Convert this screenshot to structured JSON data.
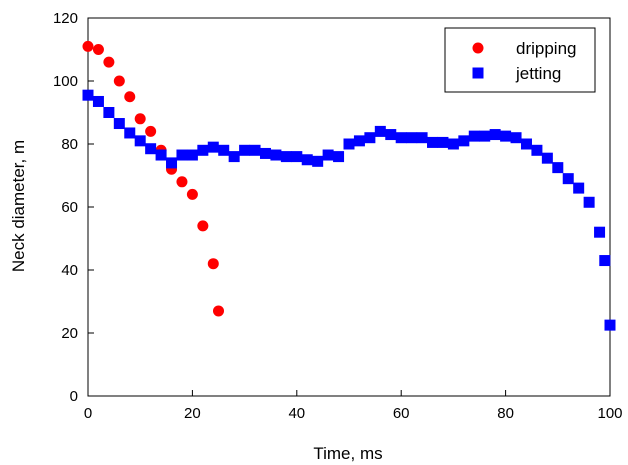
{
  "chart_data": {
    "type": "scatter",
    "title": "",
    "xlabel": "Time, ms",
    "ylabel": "Neck diameter,    m",
    "xlim": [
      0,
      100
    ],
    "ylim": [
      0,
      120
    ],
    "xticks": [
      0,
      20,
      40,
      60,
      80,
      100
    ],
    "yticks": [
      0,
      20,
      40,
      60,
      80,
      100,
      120
    ],
    "grid": false,
    "legend_position": "top-right",
    "series": [
      {
        "name": "dripping",
        "marker": "circle",
        "color": "#ff0000",
        "x": [
          0,
          2,
          4,
          6,
          8,
          10,
          12,
          14,
          16,
          18,
          20,
          22,
          24,
          25
        ],
        "y": [
          111,
          110,
          106,
          100,
          95,
          88,
          84,
          78,
          72,
          68,
          64,
          54,
          42,
          27
        ]
      },
      {
        "name": "jetting",
        "marker": "square",
        "color": "#0000ff",
        "x": [
          0,
          2,
          4,
          6,
          8,
          10,
          12,
          14,
          16,
          18,
          20,
          22,
          24,
          26,
          28,
          30,
          32,
          34,
          36,
          38,
          40,
          42,
          44,
          46,
          48,
          50,
          52,
          54,
          56,
          58,
          60,
          62,
          64,
          66,
          68,
          70,
          72,
          74,
          76,
          78,
          80,
          82,
          84,
          86,
          88,
          90,
          92,
          94,
          96,
          98,
          99,
          100
        ],
        "y": [
          95.5,
          93.5,
          90,
          86.5,
          83.5,
          81,
          78.5,
          76.5,
          74,
          76.5,
          76.5,
          78,
          79,
          78,
          76,
          78,
          78,
          77,
          76.5,
          76,
          76,
          75,
          74.5,
          76.5,
          76,
          80,
          81,
          82,
          84,
          83,
          82,
          82,
          82,
          80.5,
          80.5,
          80,
          81,
          82.5,
          82.5,
          83,
          82.5,
          82,
          80,
          78,
          75.5,
          72.5,
          69,
          66,
          61.5,
          52,
          43,
          22.5
        ]
      }
    ]
  }
}
